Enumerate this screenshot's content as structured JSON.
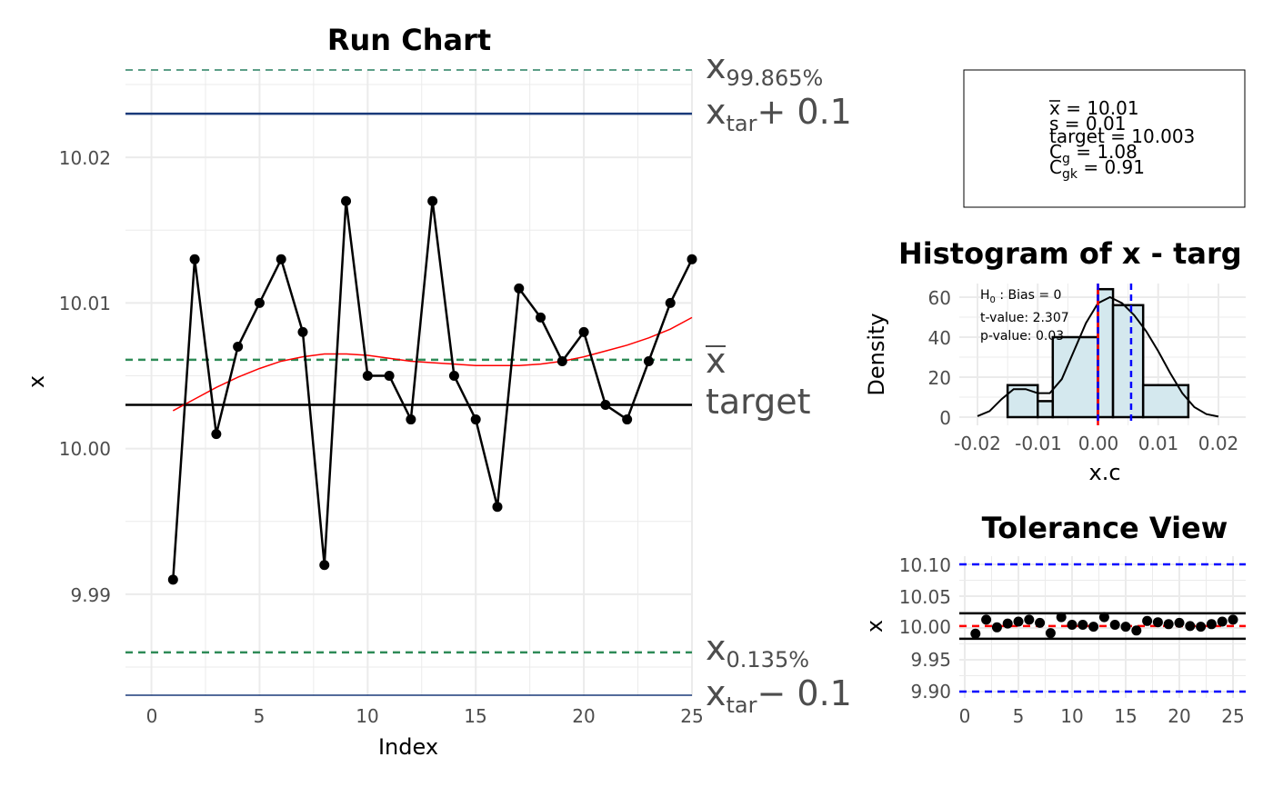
{
  "colors": {
    "grid": "#ebebeb",
    "band_top": "#5c9e87",
    "band": "#2e8b57",
    "tol": "#1a3a7a",
    "fit": "#ff0000",
    "hist_fill": "#d4e8ee",
    "blue": "#0000ff",
    "red": "#ff0000"
  },
  "run_chart": {
    "title": "Run Chart",
    "xlabel": "Index",
    "ylabel": "x",
    "y_ticks": [
      "9.99",
      "10.00",
      "10.01",
      "10.02"
    ],
    "x_ticks": [
      "0",
      "5",
      "10",
      "15",
      "20",
      "25"
    ],
    "ref_labels": {
      "upper_pct": {
        "main": "x",
        "sub": "99.865%"
      },
      "upper_tol": {
        "main": "x",
        "sub": "tar",
        "suffix": "+ 0.1"
      },
      "xbar": "x",
      "target": "target",
      "lower_pct": {
        "main": "x",
        "sub": "0.135%"
      },
      "lower_tol": {
        "main": "x",
        "sub": "tar",
        "suffix": "− 0.1"
      }
    }
  },
  "stats_box": {
    "lines": [
      {
        "label": "x",
        "overline": true,
        "sub": "",
        "value": "= 10.01"
      },
      {
        "label": "s",
        "overline": false,
        "sub": "",
        "value": "= 0.01"
      },
      {
        "label": "target",
        "overline": false,
        "sub": "",
        "value": "= 10.003"
      },
      {
        "label": "C",
        "overline": false,
        "sub": "g",
        "value": "= 1.08"
      },
      {
        "label": "C",
        "overline": false,
        "sub": "gk",
        "value": "= 0.91"
      }
    ]
  },
  "histogram": {
    "title": "Histogram of x - targ",
    "xlabel": "x.c",
    "ylabel": "Density",
    "x_ticks": [
      "-0.02",
      "-0.01",
      "0.00",
      "0.01",
      "0.02"
    ],
    "y_ticks": [
      "0",
      "20",
      "40",
      "60"
    ],
    "annotations": {
      "h0_main": "H",
      "h0_sub": "0",
      "h0_rest": " : Bias = 0",
      "tvalue": "t-value:  2.307",
      "pvalue": "p-value:  0.03"
    }
  },
  "tolerance": {
    "title": "Tolerance View",
    "ylabel": "x",
    "y_ticks": [
      "9.90",
      "9.95",
      "10.00",
      "10.05",
      "10.10"
    ],
    "x_ticks": [
      "0",
      "5",
      "10",
      "15",
      "20",
      "25"
    ]
  },
  "chart_data": [
    {
      "type": "line",
      "title": "Run Chart",
      "xlabel": "Index",
      "ylabel": "x",
      "xlim": [
        0,
        25
      ],
      "ylim": [
        9.983,
        10.026
      ],
      "x": [
        1,
        2,
        3,
        4,
        5,
        6,
        7,
        8,
        9,
        10,
        11,
        12,
        13,
        14,
        15,
        16,
        17,
        18,
        19,
        20,
        21,
        22,
        23,
        24,
        25
      ],
      "series": [
        {
          "values": [
            9.991,
            10.013,
            10.001,
            10.007,
            10.01,
            10.013,
            10.008,
            9.992,
            10.017,
            10.005,
            10.005,
            10.002,
            10.017,
            10.005,
            10.002,
            9.996,
            10.011,
            10.009,
            10.006,
            10.008,
            10.003,
            10.002,
            10.006,
            10.01,
            10.013
          ]
        },
        {
          "values": [
            10.0026,
            10.0034,
            10.0042,
            10.0049,
            10.0055,
            10.006,
            10.0063,
            10.0065,
            10.0065,
            10.0064,
            10.0062,
            10.006,
            10.0059,
            10.0058,
            10.0057,
            10.0057,
            10.0057,
            10.0058,
            10.006,
            10.0063,
            10.0067,
            10.0071,
            10.0076,
            10.0082,
            10.009
          ]
        }
      ],
      "reference_lines": {
        "x_99865": 10.026,
        "x_tar_plus": 10.023,
        "xbar": 10.0061,
        "target": 10.003,
        "x_0135": 9.986,
        "x_tar_minus": 9.983
      },
      "grid": true
    },
    {
      "type": "bar",
      "title": "Histogram of x - targ",
      "xlabel": "x.c",
      "ylabel": "Density",
      "xlim": [
        -0.0215,
        0.0235
      ],
      "ylim": [
        0,
        66
      ],
      "bin_edges": [
        -0.015,
        -0.01,
        -0.0075,
        0.0,
        0.0025,
        0.0075,
        0.015
      ],
      "values": [
        16,
        8,
        40,
        64,
        56,
        16
      ],
      "density_curve": {
        "x": [
          -0.02,
          -0.018,
          -0.016,
          -0.014,
          -0.012,
          -0.01,
          -0.008,
          -0.006,
          -0.004,
          -0.002,
          0.0,
          0.002,
          0.004,
          0.006,
          0.008,
          0.01,
          0.012,
          0.014,
          0.016,
          0.018,
          0.02
        ],
        "y": [
          0.5,
          3,
          9,
          14,
          14,
          12,
          12,
          19,
          33,
          47,
          57,
          60,
          57,
          51,
          43,
          33,
          22,
          12,
          5,
          1.5,
          0.3
        ]
      },
      "vlines": {
        "zero": 0.0,
        "mean_left": 0.0,
        "mean_right": 0.0055
      },
      "grid": true
    },
    {
      "type": "scatter",
      "title": "Tolerance View",
      "ylabel": "x",
      "xlim": [
        0,
        25
      ],
      "ylim": [
        9.887,
        10.117
      ],
      "x": [
        1,
        2,
        3,
        4,
        5,
        6,
        7,
        8,
        9,
        10,
        11,
        12,
        13,
        14,
        15,
        16,
        17,
        18,
        19,
        20,
        21,
        22,
        23,
        24,
        25
      ],
      "values": [
        9.991,
        10.013,
        10.001,
        10.007,
        10.01,
        10.013,
        10.008,
        9.992,
        10.017,
        10.005,
        10.005,
        10.002,
        10.017,
        10.005,
        10.002,
        9.996,
        10.011,
        10.009,
        10.006,
        10.008,
        10.003,
        10.002,
        10.006,
        10.01,
        10.013
      ],
      "hlines": {
        "upper_tol": 10.1,
        "lower_tol": 9.9,
        "upper_lim": 10.023,
        "lower_lim": 9.983,
        "target": 10.003
      },
      "grid": true
    }
  ]
}
